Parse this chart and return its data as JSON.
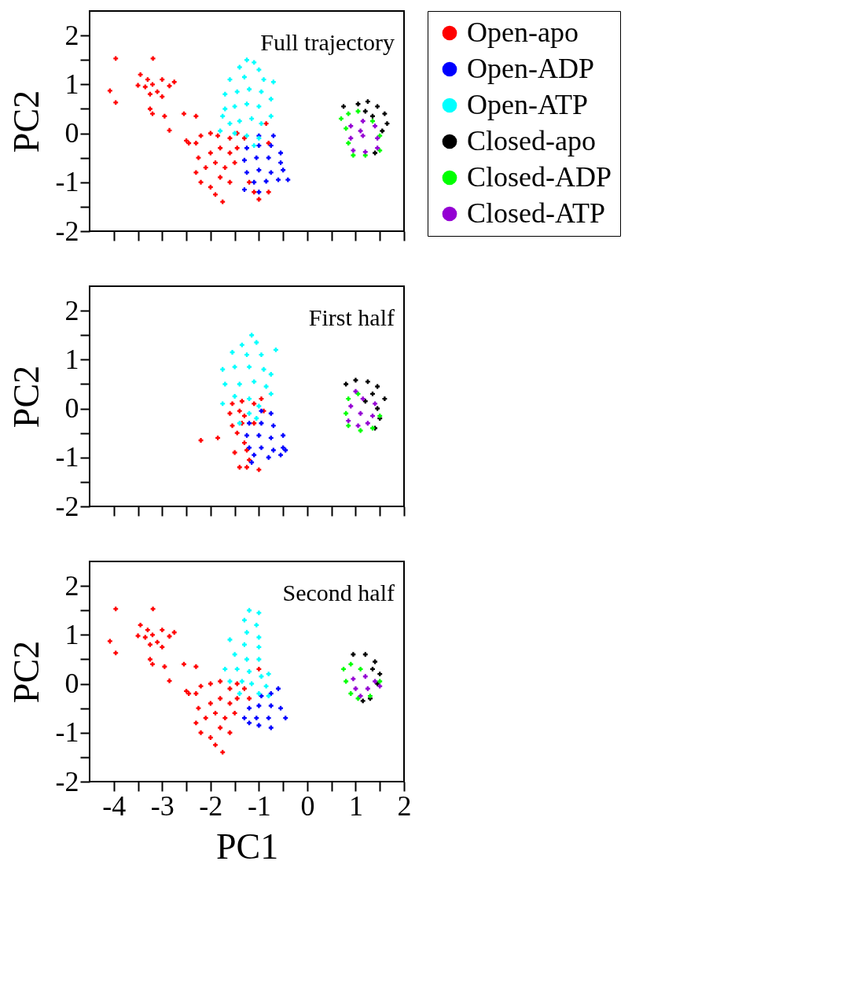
{
  "chart_data": [
    {
      "type": "scatter",
      "annotations": [
        "Full trajectory"
      ],
      "ylabel": "PC2",
      "xlim": [
        -4.5,
        2
      ],
      "ylim": [
        -2,
        2.5
      ],
      "tick_labels": "y",
      "marker": "cross",
      "legend": "right",
      "xticks": [
        -4,
        {
          "value": -3.5,
          "label": null
        },
        -3,
        {
          "value": -2.5,
          "label": null
        },
        -2,
        {
          "value": -1.5,
          "label": null
        },
        -1,
        {
          "value": -0.5,
          "label": null
        },
        0,
        {
          "value": 0.5,
          "label": null
        },
        1,
        {
          "value": 1.5,
          "label": null
        },
        2
      ],
      "yticks": [
        -2,
        {
          "value": -1.5,
          "label": null
        },
        -1,
        {
          "value": -0.5,
          "label": null
        },
        0,
        {
          "value": 0.5,
          "label": null
        },
        1,
        {
          "value": 1.5,
          "label": null
        },
        2
      ],
      "series": [
        {
          "name": "Open-apo",
          "color": "#ff0000",
          "x": [
            -3.96,
            -3.19,
            -4.08,
            -3.96,
            -3.45,
            -3.3,
            -3.35,
            -3.2,
            -3.0,
            -3.1,
            -3.5,
            -3.25,
            -2.85,
            -2.75,
            -3.25,
            -3.0,
            -3.2,
            -2.95,
            -2.55,
            -2.3,
            -2.85,
            -2.45,
            -2.5,
            -2.3,
            -2.2,
            -2.0,
            -1.85,
            -1.6,
            -2.25,
            -2.0,
            -1.8,
            -1.6,
            -1.45,
            -2.3,
            -2.1,
            -1.9,
            -1.7,
            -1.5,
            -2.2,
            -2.0,
            -1.8,
            -1.6,
            -1.9,
            -1.75,
            -1.1,
            -1.0,
            -1.2,
            -0.8,
            -1.45,
            -1.3,
            -0.85,
            -0.8
          ],
          "values": [
            1.53,
            1.53,
            0.87,
            0.63,
            1.2,
            1.1,
            0.95,
            1.0,
            1.1,
            0.85,
            0.98,
            0.8,
            0.97,
            1.05,
            0.5,
            0.75,
            0.4,
            0.35,
            0.4,
            0.35,
            0.06,
            -0.2,
            -0.15,
            -0.2,
            -0.05,
            0.0,
            -0.05,
            -0.1,
            -0.5,
            -0.4,
            -0.3,
            -0.4,
            -0.3,
            -0.8,
            -0.7,
            -0.6,
            -0.7,
            -0.6,
            -1.0,
            -1.1,
            -0.9,
            -1.0,
            -1.25,
            -1.4,
            -1.2,
            -1.35,
            -1.0,
            -1.2,
            0.0,
            -0.1,
            0.2,
            -0.2
          ]
        },
        {
          "name": "Open-ADP",
          "color": "#0000ff",
          "x": [
            -1.0,
            -0.7,
            -1.25,
            -1.0,
            -0.75,
            -0.55,
            -1.3,
            -1.05,
            -0.8,
            -0.55,
            -1.25,
            -1.0,
            -0.75,
            -0.5,
            -1.1,
            -0.85,
            -0.6,
            -0.4,
            -1.3,
            -1.0
          ],
          "values": [
            -0.05,
            -0.05,
            -0.3,
            -0.25,
            -0.25,
            -0.4,
            -0.55,
            -0.5,
            -0.5,
            -0.6,
            -0.8,
            -0.75,
            -0.8,
            -0.75,
            -1.0,
            -0.98,
            -0.95,
            -0.95,
            -1.15,
            -1.2
          ]
        },
        {
          "name": "Open-ATP",
          "color": "#00ffff",
          "x": [
            -1.25,
            -1.1,
            -1.4,
            -1.0,
            -1.6,
            -1.3,
            -0.9,
            -0.7,
            -1.7,
            -1.45,
            -1.2,
            -0.95,
            -0.75,
            -1.7,
            -1.5,
            -1.25,
            -1.0,
            -0.75,
            -1.6,
            -1.4,
            -1.15,
            -0.95,
            -1.8,
            -1.5,
            -1.25,
            -1.0,
            -1.1,
            -1.75
          ],
          "values": [
            1.5,
            1.45,
            1.35,
            1.3,
            1.1,
            1.15,
            1.1,
            1.05,
            0.8,
            0.85,
            0.9,
            0.85,
            0.7,
            0.5,
            0.55,
            0.6,
            0.55,
            0.35,
            0.2,
            0.25,
            0.3,
            0.2,
            0.05,
            0.0,
            -0.05,
            -0.1,
            -0.25,
            0.35
          ]
        },
        {
          "name": "Closed-apo",
          "color": "#000000",
          "x": [
            0.75,
            1.05,
            1.25,
            1.45,
            1.6,
            1.65,
            1.35,
            1.55,
            1.2,
            1.4
          ],
          "values": [
            0.55,
            0.6,
            0.65,
            0.55,
            0.4,
            0.2,
            0.35,
            0.05,
            0.45,
            -0.4
          ]
        },
        {
          "name": "Closed-ADP",
          "color": "#00ff00",
          "x": [
            0.7,
            0.85,
            1.05,
            0.8,
            0.85,
            0.95,
            1.2,
            1.5,
            1.5,
            1.35
          ],
          "values": [
            0.3,
            0.4,
            0.45,
            0.1,
            -0.2,
            -0.45,
            -0.45,
            -0.35,
            -0.05,
            0.25
          ]
        },
        {
          "name": "Closed-ATP",
          "color": "#9400d3",
          "x": [
            0.9,
            1.15,
            1.4,
            0.9,
            1.15,
            1.45,
            0.95,
            1.2,
            1.45,
            1.1
          ],
          "values": [
            0.15,
            0.25,
            0.15,
            -0.1,
            -0.05,
            -0.1,
            -0.35,
            -0.38,
            -0.3,
            0.05
          ]
        }
      ]
    },
    {
      "type": "scatter",
      "annotations": [
        "First half"
      ],
      "ylabel": "PC2",
      "xlim": [
        -4.5,
        2
      ],
      "ylim": [
        -2,
        2.5
      ],
      "tick_labels": "y",
      "marker": "cross",
      "xticks": [
        -4,
        {
          "value": -3.5,
          "label": null
        },
        -3,
        {
          "value": -2.5,
          "label": null
        },
        -2,
        {
          "value": -1.5,
          "label": null
        },
        -1,
        {
          "value": -0.5,
          "label": null
        },
        0,
        {
          "value": 0.5,
          "label": null
        },
        1,
        {
          "value": 1.5,
          "label": null
        },
        2
      ],
      "yticks": [
        -2,
        {
          "value": -1.5,
          "label": null
        },
        -1,
        {
          "value": -0.5,
          "label": null
        },
        0,
        {
          "value": 0.5,
          "label": null
        },
        1,
        {
          "value": 1.5,
          "label": null
        },
        2
      ],
      "series": [
        {
          "color": "#ff0000",
          "x": [
            -2.2,
            -1.85,
            -1.5,
            -1.4,
            -1.25,
            -1.0,
            -1.2,
            -1.55,
            -1.35,
            -1.1,
            -0.95,
            -1.6,
            -1.4,
            -1.3,
            -1.55,
            -1.35,
            -1.45,
            -1.3,
            -1.25,
            -1.1,
            -0.9
          ],
          "values": [
            -0.65,
            -0.6,
            -0.9,
            -1.2,
            -1.2,
            -1.25,
            -1.05,
            0.1,
            0.15,
            0.1,
            0.2,
            -0.1,
            -0.05,
            -0.15,
            -0.35,
            -0.3,
            -0.5,
            -0.7,
            -0.85,
            -0.3,
            -0.05
          ]
        },
        {
          "color": "#0000ff",
          "x": [
            -0.95,
            -0.75,
            -1.2,
            -0.95,
            -0.7,
            -1.25,
            -1.0,
            -0.75,
            -0.5,
            -1.2,
            -0.95,
            -0.7,
            -0.5,
            -1.1,
            -0.8,
            -0.55,
            -0.45,
            -1.15
          ],
          "values": [
            -0.05,
            -0.1,
            -0.3,
            -0.3,
            -0.35,
            -0.55,
            -0.55,
            -0.6,
            -0.55,
            -0.8,
            -0.8,
            -0.85,
            -0.8,
            -0.95,
            -1.0,
            -0.95,
            -0.85,
            -1.1
          ]
        },
        {
          "color": "#00ffff",
          "x": [
            -1.15,
            -1.35,
            -1.05,
            -1.55,
            -1.25,
            -0.95,
            -0.65,
            -1.75,
            -1.5,
            -1.2,
            -0.9,
            -0.75,
            -1.7,
            -1.4,
            -1.1,
            -0.85,
            -0.75,
            -1.75,
            -1.5,
            -1.2,
            -1.0,
            -1.2,
            -1.05,
            -1.4
          ],
          "values": [
            1.5,
            1.3,
            1.35,
            1.15,
            1.1,
            1.1,
            1.2,
            0.8,
            0.85,
            0.85,
            0.8,
            0.7,
            0.5,
            0.5,
            0.55,
            0.45,
            0.3,
            0.1,
            0.25,
            0.2,
            0.05,
            -0.1,
            -0.2,
            -0.3
          ]
        },
        {
          "color": "#000000",
          "x": [
            0.8,
            1.0,
            1.25,
            1.45,
            1.6,
            1.45,
            1.35,
            1.5,
            1.4,
            1.2
          ],
          "values": [
            0.5,
            0.58,
            0.55,
            0.45,
            0.2,
            0.0,
            0.3,
            -0.2,
            -0.4,
            0.15
          ]
        },
        {
          "color": "#00ff00",
          "x": [
            0.85,
            0.8,
            0.85,
            1.1,
            1.35,
            1.5,
            1.05
          ],
          "values": [
            0.2,
            -0.1,
            -0.35,
            -0.45,
            -0.4,
            -0.15,
            0.3
          ]
        },
        {
          "color": "#9400d3",
          "x": [
            1.0,
            0.9,
            1.15,
            1.4,
            0.85,
            1.1,
            1.35,
            1.05,
            1.25
          ],
          "values": [
            0.35,
            0.05,
            0.2,
            0.1,
            -0.25,
            -0.1,
            -0.15,
            -0.35,
            -0.3
          ]
        }
      ]
    },
    {
      "type": "scatter",
      "annotations": [
        "Second half"
      ],
      "xlabel": "PC1",
      "ylabel": "PC2",
      "xlim": [
        -4.5,
        2
      ],
      "ylim": [
        -2,
        2.5
      ],
      "marker": "cross",
      "xticks": [
        -4,
        {
          "value": -3.5,
          "label": null
        },
        -3,
        {
          "value": -2.5,
          "label": null
        },
        -2,
        {
          "value": -1.5,
          "label": null
        },
        -1,
        {
          "value": -0.5,
          "label": null
        },
        0,
        {
          "value": 0.5,
          "label": null
        },
        1,
        {
          "value": 1.5,
          "label": null
        },
        2
      ],
      "yticks": [
        -2,
        {
          "value": -1.5,
          "label": null
        },
        -1,
        {
          "value": -0.5,
          "label": null
        },
        0,
        {
          "value": 0.5,
          "label": null
        },
        1,
        {
          "value": 1.5,
          "label": null
        },
        2
      ],
      "series": [
        {
          "color": "#ff0000",
          "x": [
            -3.96,
            -3.19,
            -4.08,
            -3.96,
            -3.45,
            -3.3,
            -3.35,
            -3.2,
            -3.0,
            -3.1,
            -3.5,
            -3.25,
            -2.85,
            -2.75,
            -3.25,
            -3.0,
            -3.2,
            -2.95,
            -2.55,
            -2.3,
            -2.85,
            -2.45,
            -2.5,
            -2.3,
            -2.2,
            -2.0,
            -1.8,
            -1.6,
            -2.25,
            -2.0,
            -1.8,
            -1.6,
            -1.45,
            -2.3,
            -2.1,
            -1.9,
            -1.7,
            -1.5,
            -2.2,
            -2.0,
            -1.8,
            -1.6,
            -1.9,
            -1.75,
            -1.45,
            -1.3,
            -1.0,
            -1.2
          ],
          "values": [
            1.53,
            1.53,
            0.87,
            0.63,
            1.2,
            1.1,
            0.95,
            1.0,
            1.1,
            0.85,
            0.98,
            0.8,
            0.97,
            1.05,
            0.5,
            0.75,
            0.4,
            0.35,
            0.4,
            0.35,
            0.06,
            -0.2,
            -0.15,
            -0.2,
            -0.05,
            0.0,
            0.05,
            -0.1,
            -0.5,
            -0.4,
            -0.3,
            -0.4,
            -0.3,
            -0.8,
            -0.7,
            -0.6,
            -0.7,
            -0.6,
            -1.0,
            -1.1,
            -0.9,
            -1.0,
            -1.25,
            -1.4,
            0.0,
            -0.1,
            0.3,
            -0.3
          ]
        },
        {
          "color": "#0000ff",
          "x": [
            -0.95,
            -0.75,
            -0.6,
            -1.2,
            -1.0,
            -0.75,
            -0.55,
            -1.3,
            -1.05,
            -0.8,
            -0.45,
            -1.0,
            -0.75,
            -1.2
          ],
          "values": [
            -0.25,
            -0.2,
            -0.1,
            -0.5,
            -0.45,
            -0.45,
            -0.5,
            -0.7,
            -0.7,
            -0.7,
            -0.7,
            -0.85,
            -0.9,
            -0.8
          ]
        },
        {
          "color": "#00ffff",
          "x": [
            -1.2,
            -1.0,
            -1.3,
            -1.05,
            -1.25,
            -1.0,
            -1.6,
            -1.3,
            -1.0,
            -1.5,
            -1.25,
            -1.0,
            -1.7,
            -1.45,
            -1.2,
            -1.6,
            -1.35,
            -1.15,
            -0.95,
            -0.8,
            -0.85,
            -1.0,
            -0.8,
            -1.4
          ],
          "values": [
            1.5,
            1.45,
            1.3,
            1.2,
            1.05,
            0.95,
            0.9,
            0.8,
            0.75,
            0.6,
            0.5,
            0.5,
            0.3,
            0.3,
            0.25,
            0.05,
            0.05,
            0.0,
            0.15,
            0.2,
            -0.05,
            -0.2,
            -0.25,
            -0.2
          ]
        },
        {
          "color": "#000000",
          "x": [
            0.95,
            1.2,
            1.4,
            1.5,
            1.45,
            1.3,
            1.15,
            1.35
          ],
          "values": [
            0.6,
            0.6,
            0.45,
            0.2,
            0.0,
            -0.3,
            -0.35,
            0.3
          ]
        },
        {
          "color": "#00ff00",
          "x": [
            0.75,
            0.9,
            1.1,
            0.8,
            0.9,
            1.05,
            1.3,
            1.5
          ],
          "values": [
            0.3,
            0.4,
            0.3,
            0.05,
            -0.2,
            -0.3,
            -0.25,
            0.05
          ]
        },
        {
          "color": "#9400d3",
          "x": [
            0.95,
            1.2,
            1.4,
            1.0,
            1.25,
            1.5,
            1.1
          ],
          "values": [
            0.1,
            0.15,
            0.05,
            -0.1,
            -0.1,
            -0.05,
            -0.25
          ]
        }
      ]
    }
  ]
}
